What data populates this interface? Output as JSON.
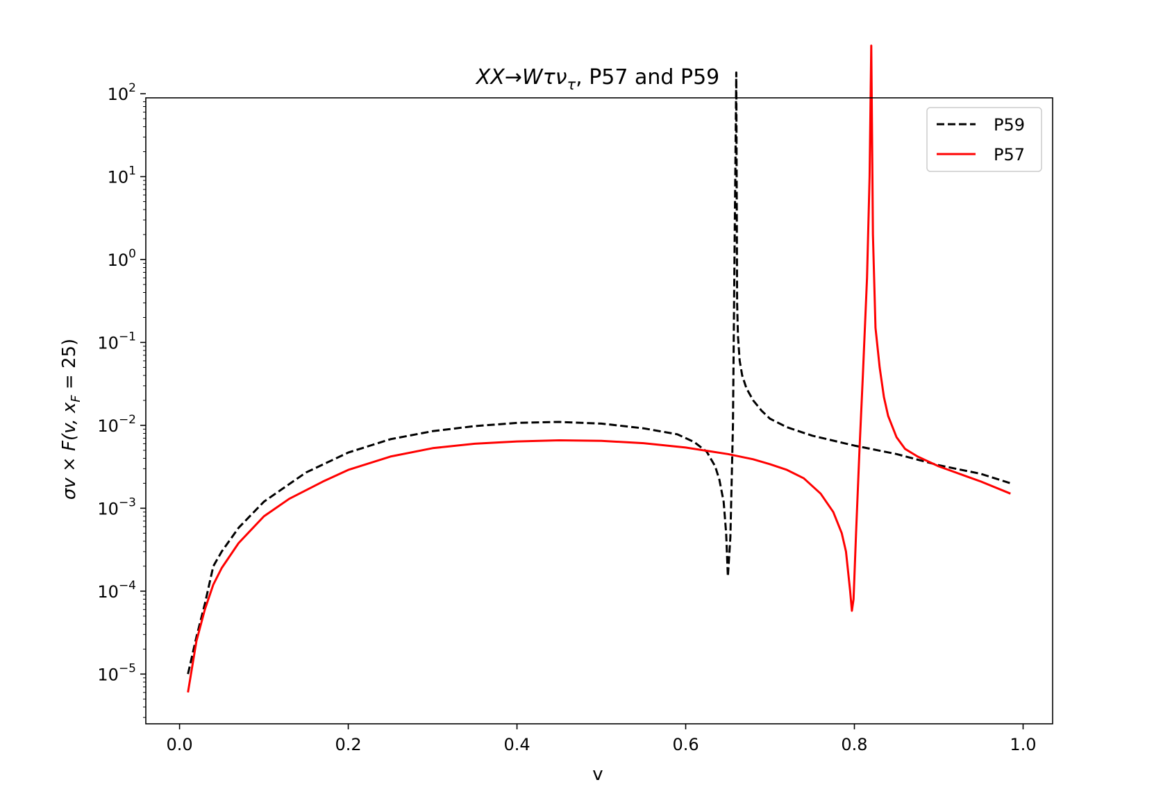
{
  "chart_data": {
    "type": "line",
    "title_main": "XX→Wτν",
    "title_sub": "τ",
    "title_rest": ", P57 and P59",
    "xlabel": "v",
    "ylabel_main": "σv × F(v, x",
    "ylabel_sub": "F",
    "ylabel_rest": " = 25)",
    "yscale": "log",
    "xlim": [
      -0.04,
      1.035
    ],
    "ylim_exp": [
      -5.6,
      1.95
    ],
    "x_ticks": [
      0.0,
      0.2,
      0.4,
      0.6,
      0.8,
      1.0
    ],
    "x_tick_labels": [
      "0.0",
      "0.2",
      "0.4",
      "0.6",
      "0.8",
      "1.0"
    ],
    "y_tick_exponents": [
      -5,
      -4,
      -3,
      -2,
      -1,
      0,
      1,
      2
    ],
    "y_tick_base": "10",
    "y_tick_exp_labels": [
      "−5",
      "−4",
      "−3",
      "−2",
      "−1",
      "0",
      "1",
      "2"
    ],
    "legend_position": "top-right",
    "series": [
      {
        "name": "P59",
        "color": "#000000",
        "dash": "dashed",
        "x": [
          0.01,
          0.02,
          0.03,
          0.04,
          0.05,
          0.07,
          0.1,
          0.15,
          0.2,
          0.25,
          0.3,
          0.35,
          0.4,
          0.45,
          0.5,
          0.55,
          0.59,
          0.61,
          0.625,
          0.635,
          0.64,
          0.645,
          0.648,
          0.65,
          0.653,
          0.656,
          0.658,
          0.66,
          0.661,
          0.662,
          0.664,
          0.667,
          0.672,
          0.68,
          0.69,
          0.7,
          0.72,
          0.75,
          0.8,
          0.85,
          0.9,
          0.95,
          0.985
        ],
        "y": [
          1e-05,
          2.8e-05,
          7e-05,
          0.0002,
          0.0003,
          0.00058,
          0.0012,
          0.0027,
          0.0047,
          0.0068,
          0.0085,
          0.0098,
          0.0107,
          0.011,
          0.0105,
          0.0092,
          0.0078,
          0.0063,
          0.0048,
          0.0032,
          0.0022,
          0.0012,
          0.0005,
          0.00015,
          0.00045,
          0.01,
          1.5,
          180,
          0.3,
          0.12,
          0.06,
          0.04,
          0.028,
          0.02,
          0.015,
          0.012,
          0.0095,
          0.0075,
          0.0057,
          0.0045,
          0.0033,
          0.0026,
          0.002
        ]
      },
      {
        "name": "P57",
        "color": "#ff0000",
        "dash": "solid",
        "x": [
          0.01,
          0.02,
          0.03,
          0.04,
          0.05,
          0.07,
          0.1,
          0.13,
          0.17,
          0.2,
          0.25,
          0.3,
          0.35,
          0.4,
          0.45,
          0.5,
          0.55,
          0.6,
          0.65,
          0.68,
          0.7,
          0.72,
          0.74,
          0.76,
          0.775,
          0.785,
          0.79,
          0.795,
          0.797,
          0.799,
          0.802,
          0.806,
          0.81,
          0.815,
          0.818,
          0.82,
          0.822,
          0.825,
          0.83,
          0.835,
          0.84,
          0.85,
          0.86,
          0.875,
          0.9,
          0.95,
          0.985
        ],
        "y": [
          6e-06,
          2.5e-05,
          6e-05,
          0.00012,
          0.00019,
          0.00038,
          0.0008,
          0.0013,
          0.0021,
          0.0029,
          0.0042,
          0.0053,
          0.006,
          0.0064,
          0.0066,
          0.0065,
          0.0061,
          0.0054,
          0.0045,
          0.0039,
          0.0034,
          0.0029,
          0.0023,
          0.0015,
          0.0009,
          0.0005,
          0.0003,
          0.0001,
          5.8e-05,
          8e-05,
          0.0005,
          0.005,
          0.04,
          0.6,
          10,
          380,
          2,
          0.15,
          0.05,
          0.022,
          0.013,
          0.0072,
          0.0052,
          0.0042,
          0.0032,
          0.0021,
          0.0015
        ]
      }
    ]
  }
}
